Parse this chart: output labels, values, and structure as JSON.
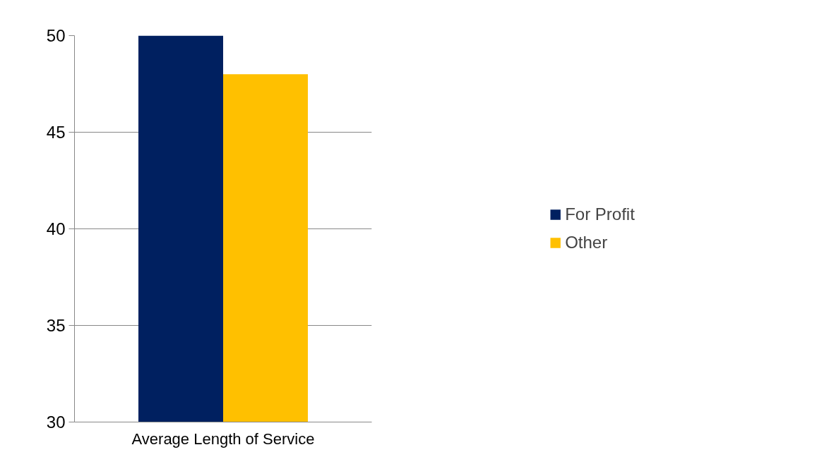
{
  "chart_data": {
    "type": "bar",
    "categories": [
      "Average Length of Service"
    ],
    "series": [
      {
        "name": "For Profit",
        "color": "#002060",
        "values": [
          50
        ]
      },
      {
        "name": "Other",
        "color": "#ffc000",
        "values": [
          48
        ]
      }
    ],
    "ylim": [
      30,
      50
    ],
    "yticks": [
      30,
      35,
      40,
      45,
      50
    ],
    "grid": "y",
    "legend": "right"
  }
}
